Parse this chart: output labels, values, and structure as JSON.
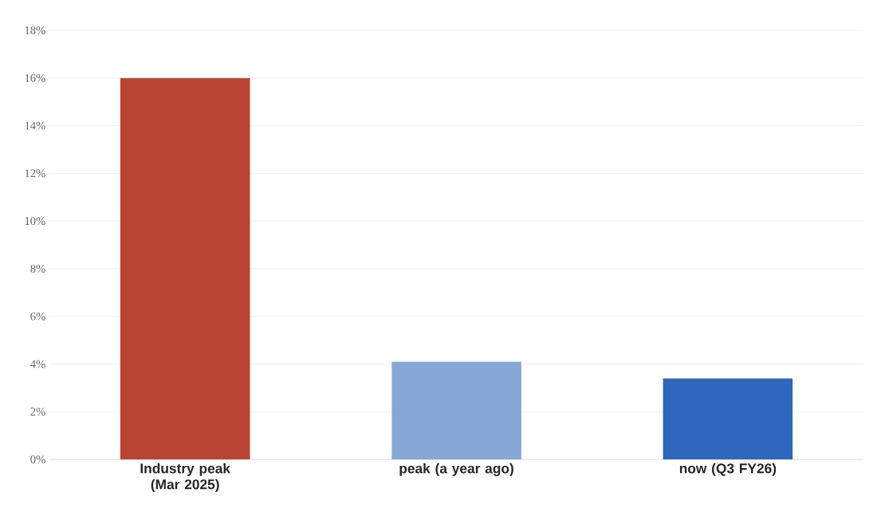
{
  "chart_data": {
    "type": "bar",
    "categories": [
      "Industry peak (Mar 2025)",
      "peak (a year ago)",
      "now (Q3 FY26)"
    ],
    "values": [
      16,
      4.1,
      3.4
    ],
    "colors": [
      "#b94434",
      "#87a7d5",
      "#2e67bc"
    ],
    "ylim": [
      0,
      18
    ],
    "yticks": [
      {
        "value": 0,
        "label": "0%"
      },
      {
        "value": 2,
        "label": "2%"
      },
      {
        "value": 4,
        "label": "4%"
      },
      {
        "value": 6,
        "label": "6%"
      },
      {
        "value": 8,
        "label": "8%"
      },
      {
        "value": 10,
        "label": "10%"
      },
      {
        "value": 12,
        "label": "12%"
      },
      {
        "value": 14,
        "label": "14%"
      },
      {
        "value": 16,
        "label": "16%"
      },
      {
        "value": 18,
        "label": "18%"
      }
    ],
    "grid": "y"
  }
}
